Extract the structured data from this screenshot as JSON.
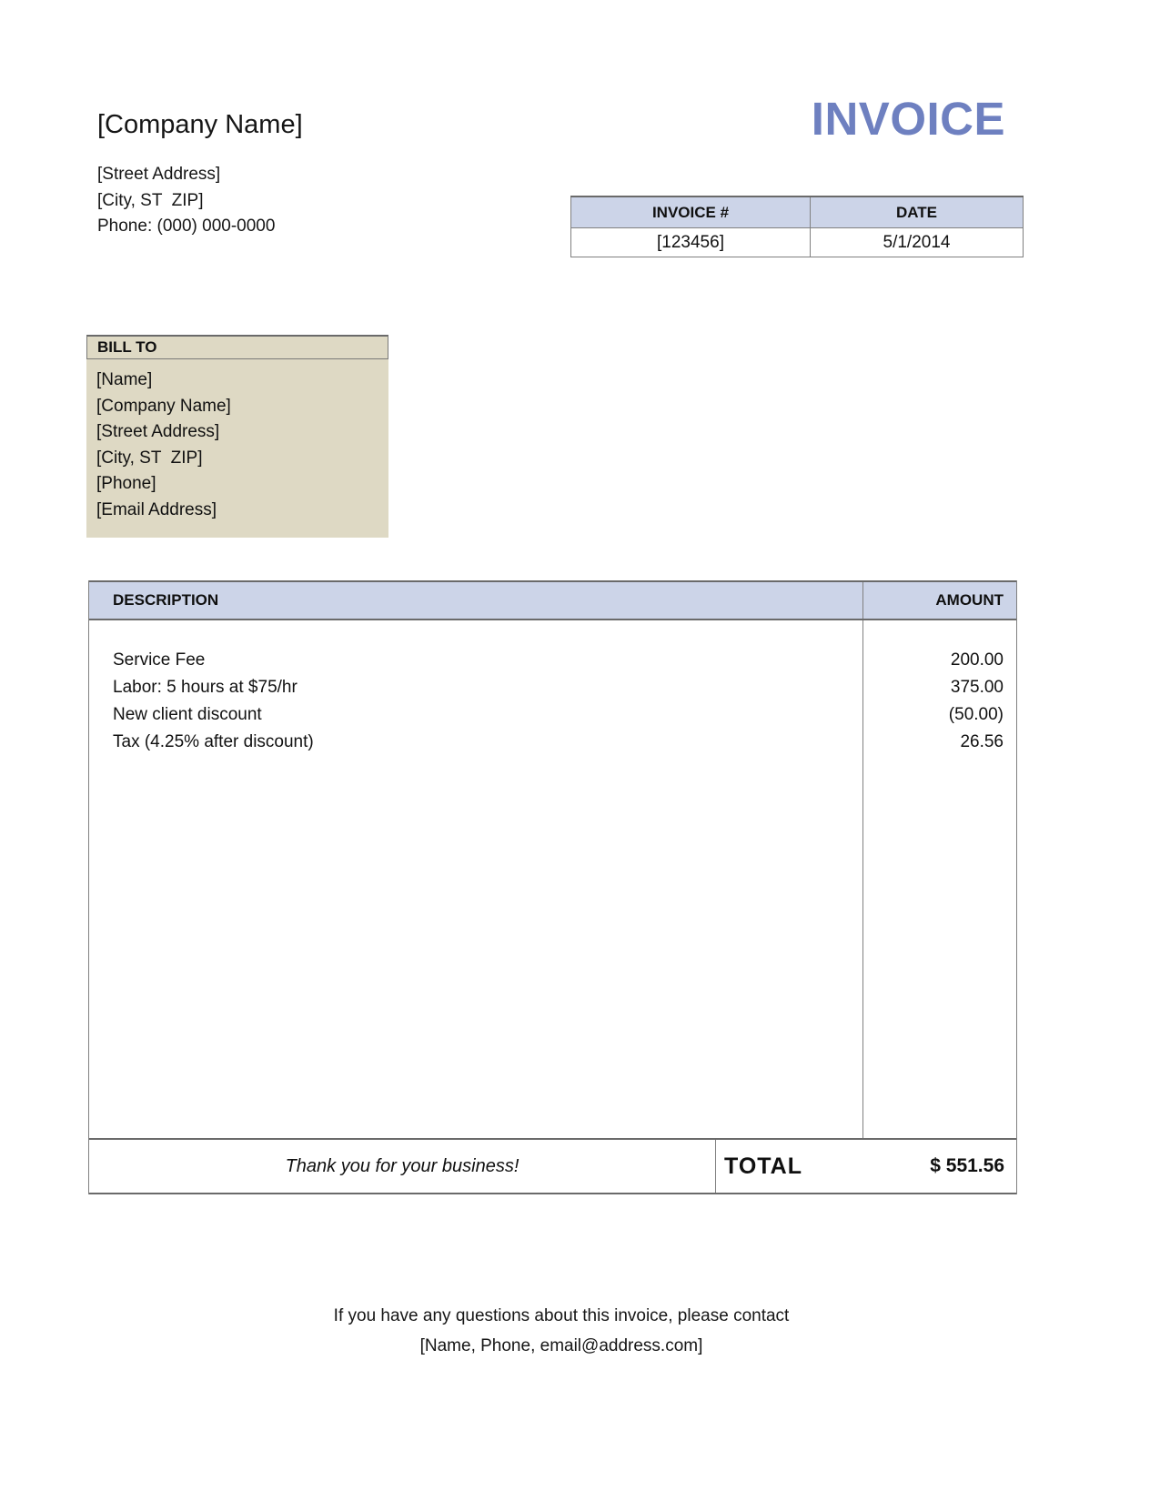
{
  "header": {
    "company_name": "[Company Name]",
    "invoice_title": "INVOICE",
    "address_lines": [
      "[Street Address]",
      "[City, ST  ZIP]",
      "Phone: (000) 000-0000"
    ]
  },
  "invoice_meta": {
    "columns": [
      {
        "label": "INVOICE #",
        "value": "[123456]"
      },
      {
        "label": "DATE",
        "value": "5/1/2014"
      }
    ]
  },
  "bill_to": {
    "label": "BILL TO",
    "lines": [
      "[Name]",
      "[Company Name]",
      "[Street Address]",
      "[City, ST  ZIP]",
      "[Phone]",
      "[Email Address]"
    ]
  },
  "items_table": {
    "description_header": "DESCRIPTION",
    "amount_header": "AMOUNT",
    "rows": [
      {
        "description": "Service Fee",
        "amount": "200.00"
      },
      {
        "description": "Labor: 5 hours at $75/hr",
        "amount": "375.00"
      },
      {
        "description": "New client discount",
        "amount": "(50.00)"
      },
      {
        "description": "Tax (4.25% after discount)",
        "amount": "26.56"
      }
    ]
  },
  "totals": {
    "thank_you": "Thank you for your business!",
    "total_label": "TOTAL",
    "total_amount": "$ 551.56"
  },
  "footer": {
    "line1": "If you have any questions about this invoice, please contact",
    "line2": "[Name, Phone, email@address.com]"
  },
  "colors": {
    "accent_title": "#6e80c0",
    "table_header_bg": "#ccd4e8",
    "bill_to_bg": "#ded9c4",
    "border_gray": "#808080",
    "border_dark": "#6a6a6a"
  }
}
